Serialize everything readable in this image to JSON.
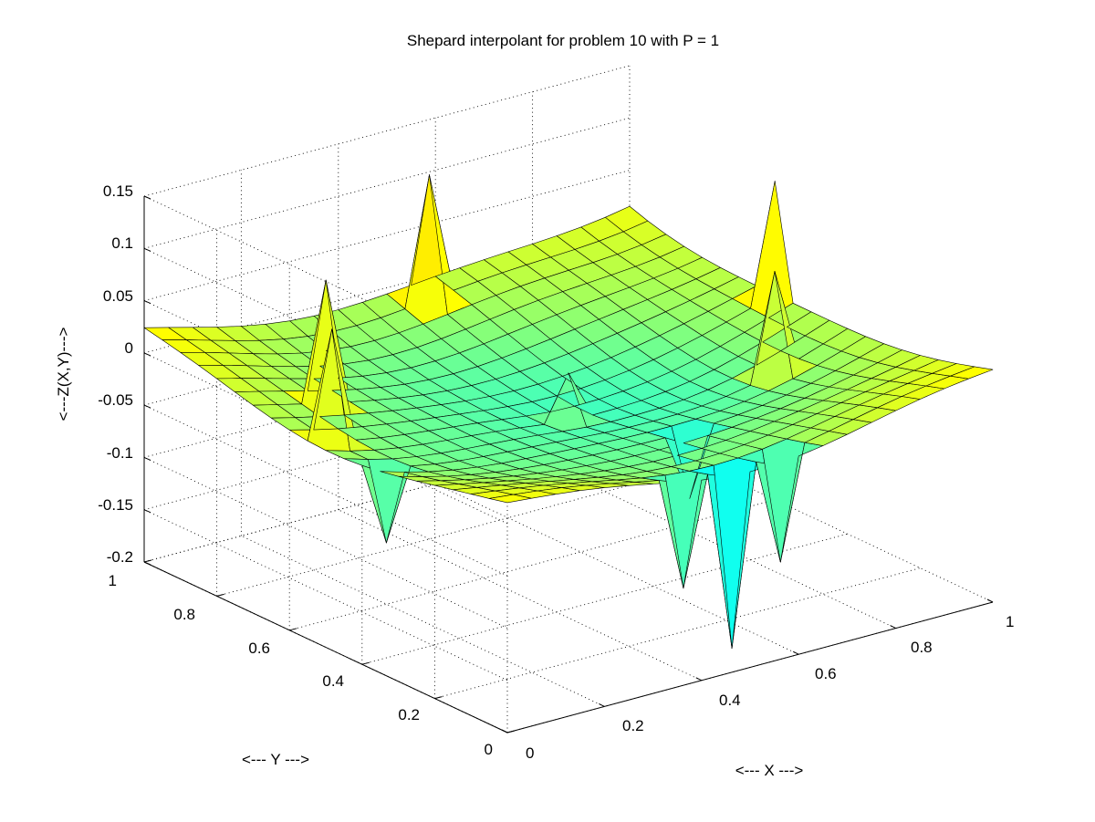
{
  "chart_data": {
    "type": "surface3d",
    "title": "Shepard interpolant for problem 10 with P = 1",
    "xlabel": "<--- X --->",
    "ylabel": "<--- Y --->",
    "zlabel": "<---Z(X,Y)--->",
    "xlim": [
      0,
      1
    ],
    "ylim": [
      0,
      1
    ],
    "zlim": [
      -0.2,
      0.15
    ],
    "x_ticks": [
      "0",
      "0.2",
      "0.4",
      "0.6",
      "0.8",
      "1"
    ],
    "y_ticks": [
      "0",
      "0.2",
      "0.4",
      "0.6",
      "0.8",
      "1"
    ],
    "z_ticks": [
      "-0.2",
      "-0.15",
      "-0.1",
      "-0.05",
      "0",
      "0.05",
      "0.1",
      "0.15"
    ],
    "grid": true,
    "colormap": "jet",
    "color_limits": [
      -0.2,
      0.15
    ],
    "grid_size": 21,
    "rim_value": 0.02,
    "center_value": -0.05,
    "features": [
      {
        "x": 0.55,
        "y": 0.95,
        "z": 0.11
      },
      {
        "x": 0.15,
        "y": 0.7,
        "z": 0.1
      },
      {
        "x": 1.0,
        "y": 0.6,
        "z": 0.105
      },
      {
        "x": 0.5,
        "y": 0.5,
        "z": 0.0
      },
      {
        "x": 0.85,
        "y": 0.4,
        "z": 0.07
      },
      {
        "x": 0.5,
        "y": 0.05,
        "z": -0.19
      },
      {
        "x": 0.4,
        "y": 0.05,
        "z": -0.12
      },
      {
        "x": 0.6,
        "y": 0.05,
        "z": -0.12
      },
      {
        "x": 0.05,
        "y": 0.4,
        "z": -0.09
      },
      {
        "x": 0.6,
        "y": 0.3,
        "z": -0.1
      },
      {
        "x": 0.05,
        "y": 0.55,
        "z": 0.09
      }
    ]
  }
}
